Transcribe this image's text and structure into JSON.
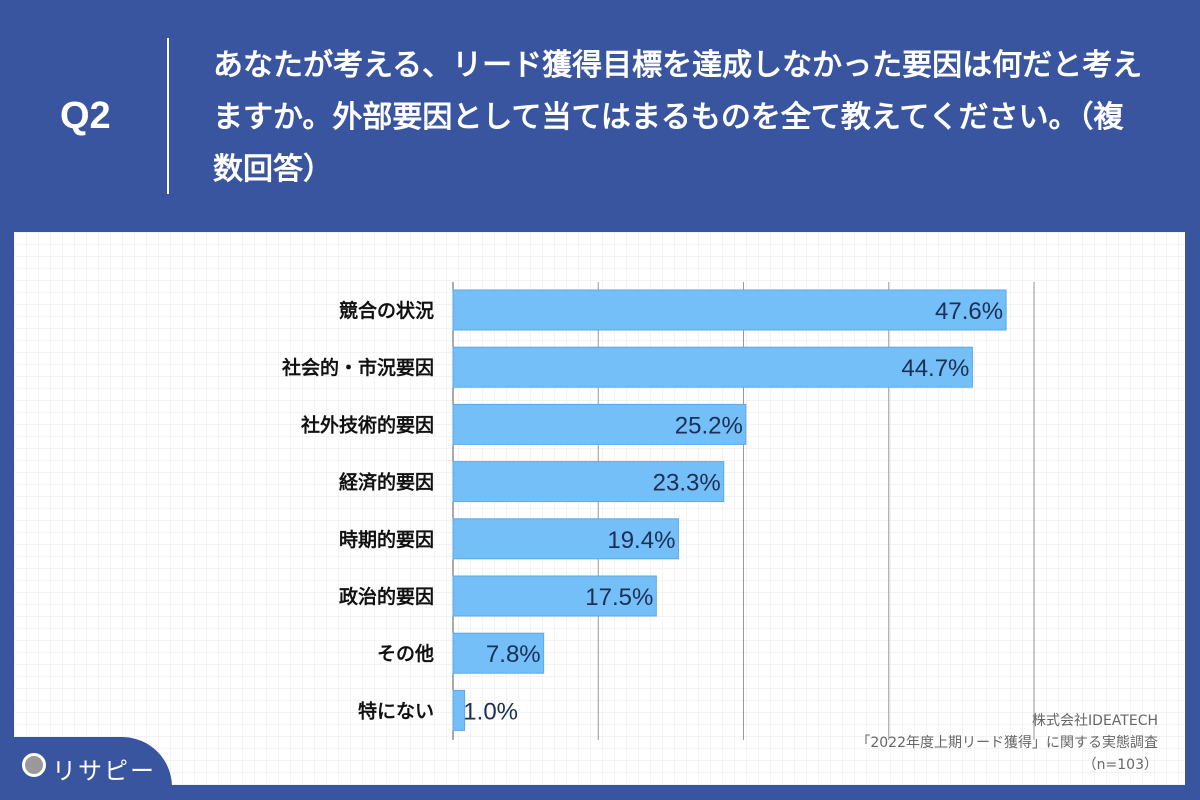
{
  "header": {
    "question": "Q2",
    "title": "あなたが考える、リード獲得目標を達成しなかった要因は何だと考えますか。外部要因として当てはまるものを全て教えてください。（複数回答）"
  },
  "chart_data": {
    "type": "bar",
    "orientation": "horizontal",
    "categories": [
      "競合の状況",
      "社会的・市況要因",
      "社外技術的要因",
      "経済的要因",
      "時期的要因",
      "政治的要因",
      "その他",
      "特にない"
    ],
    "values": [
      47.6,
      44.7,
      25.2,
      23.3,
      19.4,
      17.5,
      7.8,
      1.0
    ],
    "labels": [
      "47.6%",
      "44.7%",
      "25.2%",
      "23.3%",
      "19.4%",
      "17.5%",
      "7.8%",
      "1.0%"
    ],
    "xlim": [
      0,
      50
    ],
    "gridlines": [
      0,
      12.5,
      25,
      37.5,
      50
    ],
    "unit": "%",
    "colors": {
      "bar": "#74bff7",
      "bar_border": "#5aa9ea",
      "value_text": "#1c2f55"
    }
  },
  "footer": {
    "company": "株式会社IDEATECH",
    "survey": "「2022年度上期リード獲得」に関する実態調査",
    "n": "（n=103）",
    "logo": "リサピー"
  }
}
